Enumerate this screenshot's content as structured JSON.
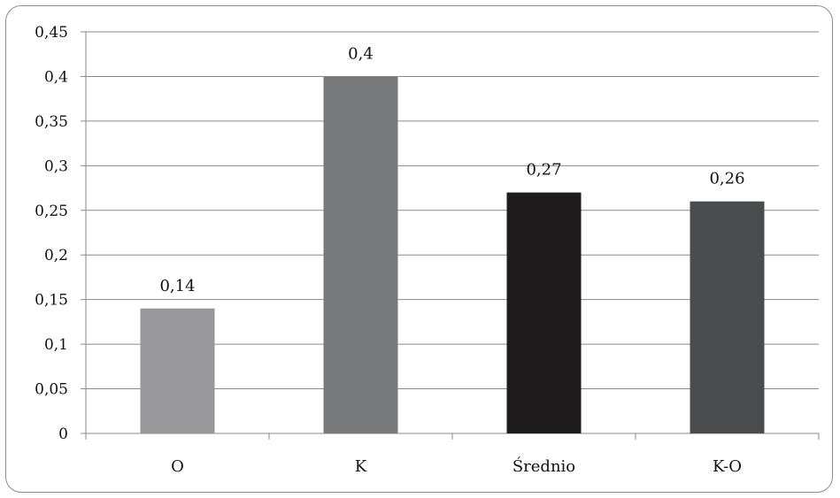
{
  "chart_data": {
    "type": "bar",
    "title": "",
    "xlabel": "",
    "ylabel": "",
    "categories": [
      "O",
      "K",
      "Średnio",
      "K-O"
    ],
    "values": [
      0.14,
      0.4,
      0.27,
      0.26
    ],
    "value_labels": [
      "0,14",
      "0,4",
      "0,27",
      "0,26"
    ],
    "bar_colors": [
      "#98989a",
      "#78797b",
      "#1f1c1d",
      "#4b4c4e"
    ],
    "ylim": [
      0,
      0.45
    ],
    "yticks": [
      0,
      0.05,
      0.1,
      0.15,
      0.2,
      0.25,
      0.3,
      0.35,
      0.4,
      0.45
    ],
    "ytick_labels": [
      "0",
      "0,05",
      "0,1",
      "0,15",
      "0,2",
      "0,25",
      "0,3",
      "0,35",
      "0,4",
      "0,45"
    ],
    "grid": true,
    "legend": "none"
  }
}
